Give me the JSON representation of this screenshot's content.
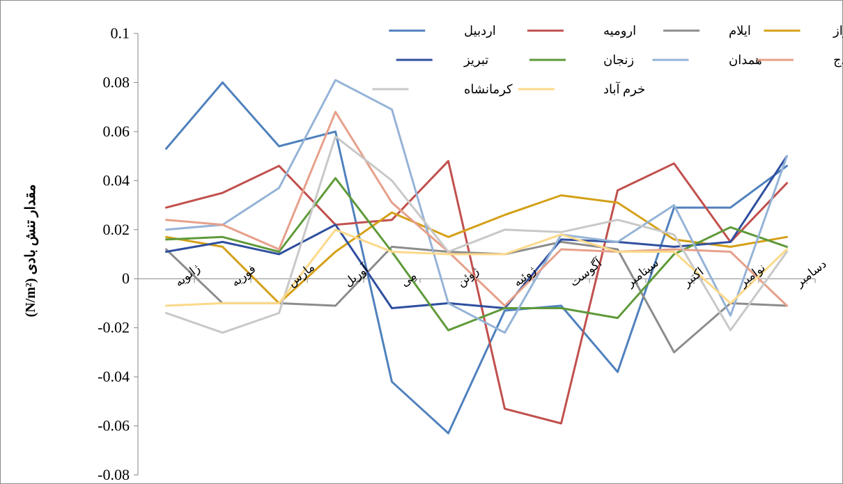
{
  "chart_data": {
    "type": "line",
    "title": "",
    "xlabel": "",
    "ylabel": "مقدار تنش بادی (N/m²)",
    "ylim": [
      -0.08,
      0.1
    ],
    "ytick_step": 0.02,
    "y_ticks": [
      "0.1",
      "0.08",
      "0.06",
      "0.04",
      "0.02",
      "0",
      "-0.02",
      "-0.04",
      "-0.06",
      "-0.08"
    ],
    "categories": [
      "ژانویه",
      "فوریه",
      "مارس",
      "آوریل",
      "مِی",
      "ژوئن",
      "ژوئیه",
      "آگوست",
      "سپتامبر",
      "اکتبر",
      "نوامبر",
      "دسامبر"
    ],
    "grid": false,
    "legend_position": "top-right",
    "series": [
      {
        "name": "اردبیل",
        "color": "#4f81bd",
        "values": [
          0.053,
          0.08,
          0.054,
          0.06,
          -0.042,
          -0.063,
          -0.013,
          -0.011,
          -0.038,
          0.029,
          0.029,
          0.046
        ]
      },
      {
        "name": "ارومیه",
        "color": "#c0504d",
        "values": [
          0.029,
          0.035,
          0.046,
          0.022,
          0.024,
          0.048,
          -0.053,
          -0.059,
          0.036,
          0.047,
          0.015,
          0.039
        ]
      },
      {
        "name": "ایلام",
        "color": "#8c8c8c",
        "values": [
          0.012,
          -0.01,
          -0.01,
          -0.011,
          0.013,
          0.011,
          0.01,
          0.015,
          0.012,
          -0.03,
          -0.01,
          -0.011
        ]
      },
      {
        "name": "اهواز",
        "color": "#d4a017",
        "values": [
          0.017,
          0.013,
          -0.01,
          0.011,
          0.027,
          0.017,
          0.026,
          0.034,
          0.031,
          0.016,
          0.013,
          0.017
        ]
      },
      {
        "name": "تبریز",
        "color": "#2f4f9e",
        "values": [
          0.011,
          0.015,
          0.01,
          0.022,
          -0.012,
          -0.01,
          -0.012,
          0.016,
          0.015,
          0.013,
          0.015,
          0.05
        ]
      },
      {
        "name": "زنجان",
        "color": "#5f9a3a",
        "values": [
          0.016,
          0.017,
          0.011,
          0.041,
          0.011,
          -0.021,
          -0.012,
          -0.012,
          -0.016,
          0.01,
          0.021,
          0.013
        ]
      },
      {
        "name": "همدان",
        "color": "#95b3d7",
        "values": [
          0.02,
          0.022,
          0.037,
          0.081,
          0.069,
          -0.01,
          -0.022,
          0.018,
          0.015,
          0.03,
          -0.015,
          0.05
        ]
      },
      {
        "name": "سنندج",
        "color": "#e6a08a",
        "values": [
          0.024,
          0.022,
          0.012,
          0.068,
          0.031,
          0.011,
          -0.011,
          0.012,
          0.011,
          0.012,
          0.011,
          -0.011
        ]
      },
      {
        "name": "کرمانشاه",
        "color": "#c8c8c8",
        "values": [
          -0.014,
          -0.022,
          -0.014,
          0.058,
          0.04,
          0.011,
          0.02,
          0.019,
          0.024,
          0.018,
          -0.021,
          0.011
        ]
      },
      {
        "name": "خرم آباد",
        "color": "#fcd98a",
        "values": [
          -0.011,
          -0.01,
          -0.01,
          0.02,
          0.011,
          0.01,
          0.01,
          0.018,
          0.011,
          0.011,
          -0.01,
          0.012
        ]
      }
    ]
  }
}
